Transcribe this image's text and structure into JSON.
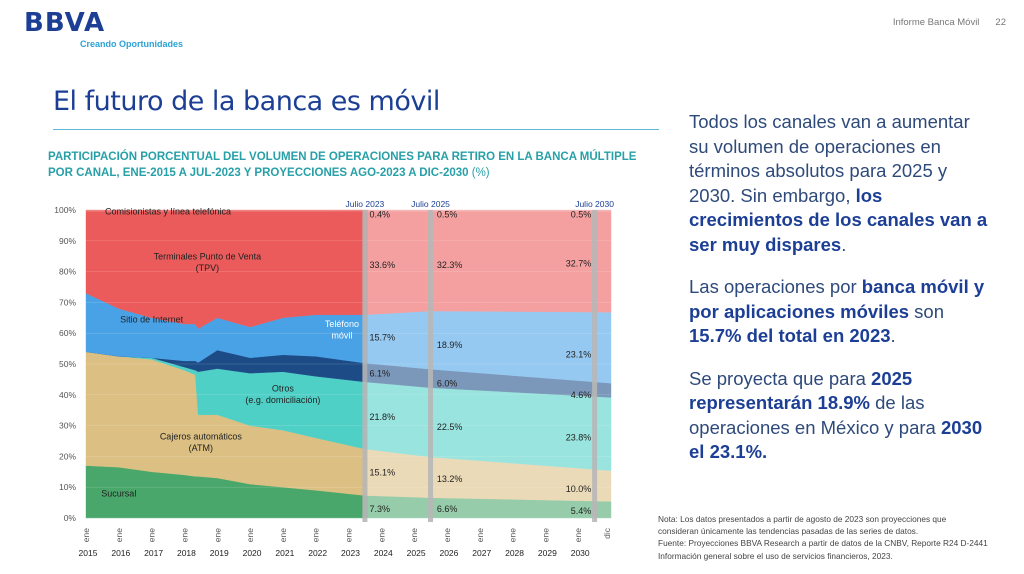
{
  "header": {
    "logo_text": "BBVA",
    "logo_tagline": "Creando Oportunidades",
    "report_name": "Informe Banca Móvil",
    "page_number": "22"
  },
  "title": "El futuro de la banca es móvil",
  "chart_heading": {
    "bold": "PARTICIPACIÓN PORCENTUAL DEL VOLUMEN DE OPERACIONES PARA RETIRO EN LA BANCA MÚLTIPLE POR CANAL, ENE-2015 A JUL-2023 Y PROYECCIONES AGO-2023 A DIC-2030",
    "unit": "(%)"
  },
  "right_panel": {
    "p1_a": "Todos los canales van a aumentar su volumen de operaciones en términos absolutos para 2025 y 2030. Sin embargo, ",
    "p1_b": "los crecimientos de los canales van a ser muy dispares",
    "p1_c": ".",
    "p2_a": "Las operaciones por ",
    "p2_b": "banca móvil y por aplicaciones móviles",
    "p2_c": " son ",
    "p2_d": "15.7% del total en 2023",
    "p2_e": ".",
    "p3_a": "Se proyecta que para ",
    "p3_b": "2025 representarán 18.9%",
    "p3_c": " de las operaciones en México y para ",
    "p3_d": "2030 el 23.1%."
  },
  "note": {
    "line1": "Nota: Los datos presentados a partir de agosto de 2023 son proyecciones que consideran únicamente las tendencias pasadas de las series de datos.",
    "line2": "Fuente: Proyecciones BBVA Research a partir de datos de la CNBV, Reporte R24 D-2441 Información general sobre el uso de servicios financieros, 2023."
  },
  "colors": {
    "sucursal": "#4aa76b",
    "atm": "#dcc083",
    "otros": "#4fd0c6",
    "telefono": "#1c4b86",
    "internet": "#4aa2e6",
    "tpv": "#ec5b5b",
    "comisionistas": "#f07a7a",
    "marker": "#b7b7b7"
  },
  "chart_data": {
    "type": "area",
    "stacked": true,
    "ylabel": "%",
    "ylim": [
      0,
      100
    ],
    "yticks": [
      "0%",
      "10%",
      "20%",
      "30%",
      "40%",
      "50%",
      "60%",
      "70%",
      "80%",
      "90%",
      "100%"
    ],
    "x_years": [
      "2015",
      "2016",
      "2017",
      "2018",
      "2019",
      "2020",
      "2021",
      "2022",
      "2023",
      "2024",
      "2025",
      "2026",
      "2027",
      "2028",
      "2029",
      "2030"
    ],
    "x_month_label": "ene",
    "x_last_label": "dic",
    "x_start": 2015.0,
    "x_end": 2031.0,
    "projection_start": 2023.58,
    "markers": [
      {
        "label": "Julio 2023",
        "x": 2023.5
      },
      {
        "label": "Julio 2025",
        "x": 2025.5
      },
      {
        "label": "Julio 2030",
        "x": 2030.5
      }
    ],
    "x_points": [
      2015.0,
      2016.0,
      2017.0,
      2018.0,
      2018.33,
      2018.42,
      2019.0,
      2020.0,
      2021.0,
      2022.0,
      2023.5,
      2025.5,
      2031.0
    ],
    "series": [
      {
        "key": "sucursal",
        "name": "Sucursal",
        "values": [
          17,
          16.5,
          15,
          14,
          13.5,
          13.5,
          13,
          11,
          10,
          9,
          7.3,
          6.6,
          5.4
        ]
      },
      {
        "key": "atm",
        "name": "Cajeros automáticos (ATM)",
        "values": [
          37,
          36,
          36.5,
          34,
          33,
          20,
          20.5,
          19,
          18.5,
          17,
          15.1,
          13.2,
          10.0
        ]
      },
      {
        "key": "otros",
        "name": "Otros (e.g. domiciliación)",
        "values": [
          0,
          0,
          0.5,
          1,
          1.5,
          14,
          15,
          17,
          19,
          20,
          21.8,
          22.5,
          23.8
        ]
      },
      {
        "key": "telefono",
        "name": "Teléfono móvil",
        "values": [
          0,
          0,
          0,
          2,
          3,
          3,
          6,
          5,
          5.5,
          6.5,
          6.1,
          6.0,
          4.6
        ]
      },
      {
        "key": "internet",
        "name": "Sitio de Internet",
        "values": [
          19,
          15.5,
          13,
          12,
          12,
          11,
          10.5,
          10,
          12,
          13.5,
          15.7,
          18.9,
          23.1
        ]
      },
      {
        "key": "tpv",
        "name": "Terminales Punto de Venta (TPV)",
        "values": [
          26.5,
          31.5,
          34.5,
          36.5,
          36.5,
          38,
          34.5,
          37.5,
          34.5,
          33.5,
          33.6,
          32.3,
          32.7
        ]
      },
      {
        "key": "comisionistas",
        "name": "Comisionistas y línea telefónica",
        "values": [
          0.5,
          0.5,
          0.5,
          0.5,
          0.5,
          0.5,
          0.5,
          0.5,
          0.5,
          0.5,
          0.4,
          0.5,
          0.5
        ]
      }
    ],
    "series_labels": [
      {
        "key": "comisionistas",
        "lines": [
          "Comisionistas y línea telefónica"
        ],
        "x": 2017.5,
        "y": 98.5
      },
      {
        "key": "tpv",
        "lines": [
          "Terminales Punto de Venta",
          "(TPV)"
        ],
        "x": 2018.7,
        "y": 84
      },
      {
        "key": "internet",
        "lines": [
          "Sitio de Internet"
        ],
        "x": 2017.0,
        "y": 63.5
      },
      {
        "key": "telefono",
        "lines": [
          "Teléfono",
          "móvil"
        ],
        "x": 2022.8,
        "y": 62
      },
      {
        "key": "otros",
        "lines": [
          "Otros",
          "(e.g. domiciliación)"
        ],
        "x": 2021.0,
        "y": 41
      },
      {
        "key": "atm",
        "lines": [
          "Cajeros automáticos",
          "(ATM)"
        ],
        "x": 2018.5,
        "y": 25.5
      },
      {
        "key": "sucursal",
        "lines": [
          "Sucursal"
        ],
        "x": 2016.0,
        "y": 7
      }
    ],
    "value_labels": [
      {
        "text": "0.4%",
        "x": 2023.55,
        "y": 98.6
      },
      {
        "text": "33.6%",
        "x": 2023.55,
        "y": 82.1
      },
      {
        "text": "15.7%",
        "x": 2023.55,
        "y": 58.6
      },
      {
        "text": "6.1%",
        "x": 2023.55,
        "y": 46.9
      },
      {
        "text": "21.8%",
        "x": 2023.55,
        "y": 32.8
      },
      {
        "text": "15.1%",
        "x": 2023.55,
        "y": 14.7
      },
      {
        "text": "7.3%",
        "x": 2023.55,
        "y": 2.9
      },
      {
        "text": "0.5%",
        "x": 2025.6,
        "y": 98.6
      },
      {
        "text": "32.3%",
        "x": 2025.6,
        "y": 82.1
      },
      {
        "text": "18.9%",
        "x": 2025.6,
        "y": 56.1
      },
      {
        "text": "6.0%",
        "x": 2025.6,
        "y": 43.6
      },
      {
        "text": "22.5%",
        "x": 2025.6,
        "y": 29.6
      },
      {
        "text": "13.2%",
        "x": 2025.6,
        "y": 12.6
      },
      {
        "text": "6.6%",
        "x": 2025.6,
        "y": 2.9
      },
      {
        "text": "0.5%",
        "x": 2030.4,
        "y": 98.6
      },
      {
        "text": "32.7%",
        "x": 2030.4,
        "y": 82.6
      },
      {
        "text": "23.1%",
        "x": 2030.4,
        "y": 53.1
      },
      {
        "text": "4.6%",
        "x": 2030.4,
        "y": 40.0
      },
      {
        "text": "23.8%",
        "x": 2030.4,
        "y": 26.1
      },
      {
        "text": "10.0%",
        "x": 2030.4,
        "y": 9.4
      },
      {
        "text": "5.4%",
        "x": 2030.4,
        "y": 2.2
      }
    ]
  }
}
